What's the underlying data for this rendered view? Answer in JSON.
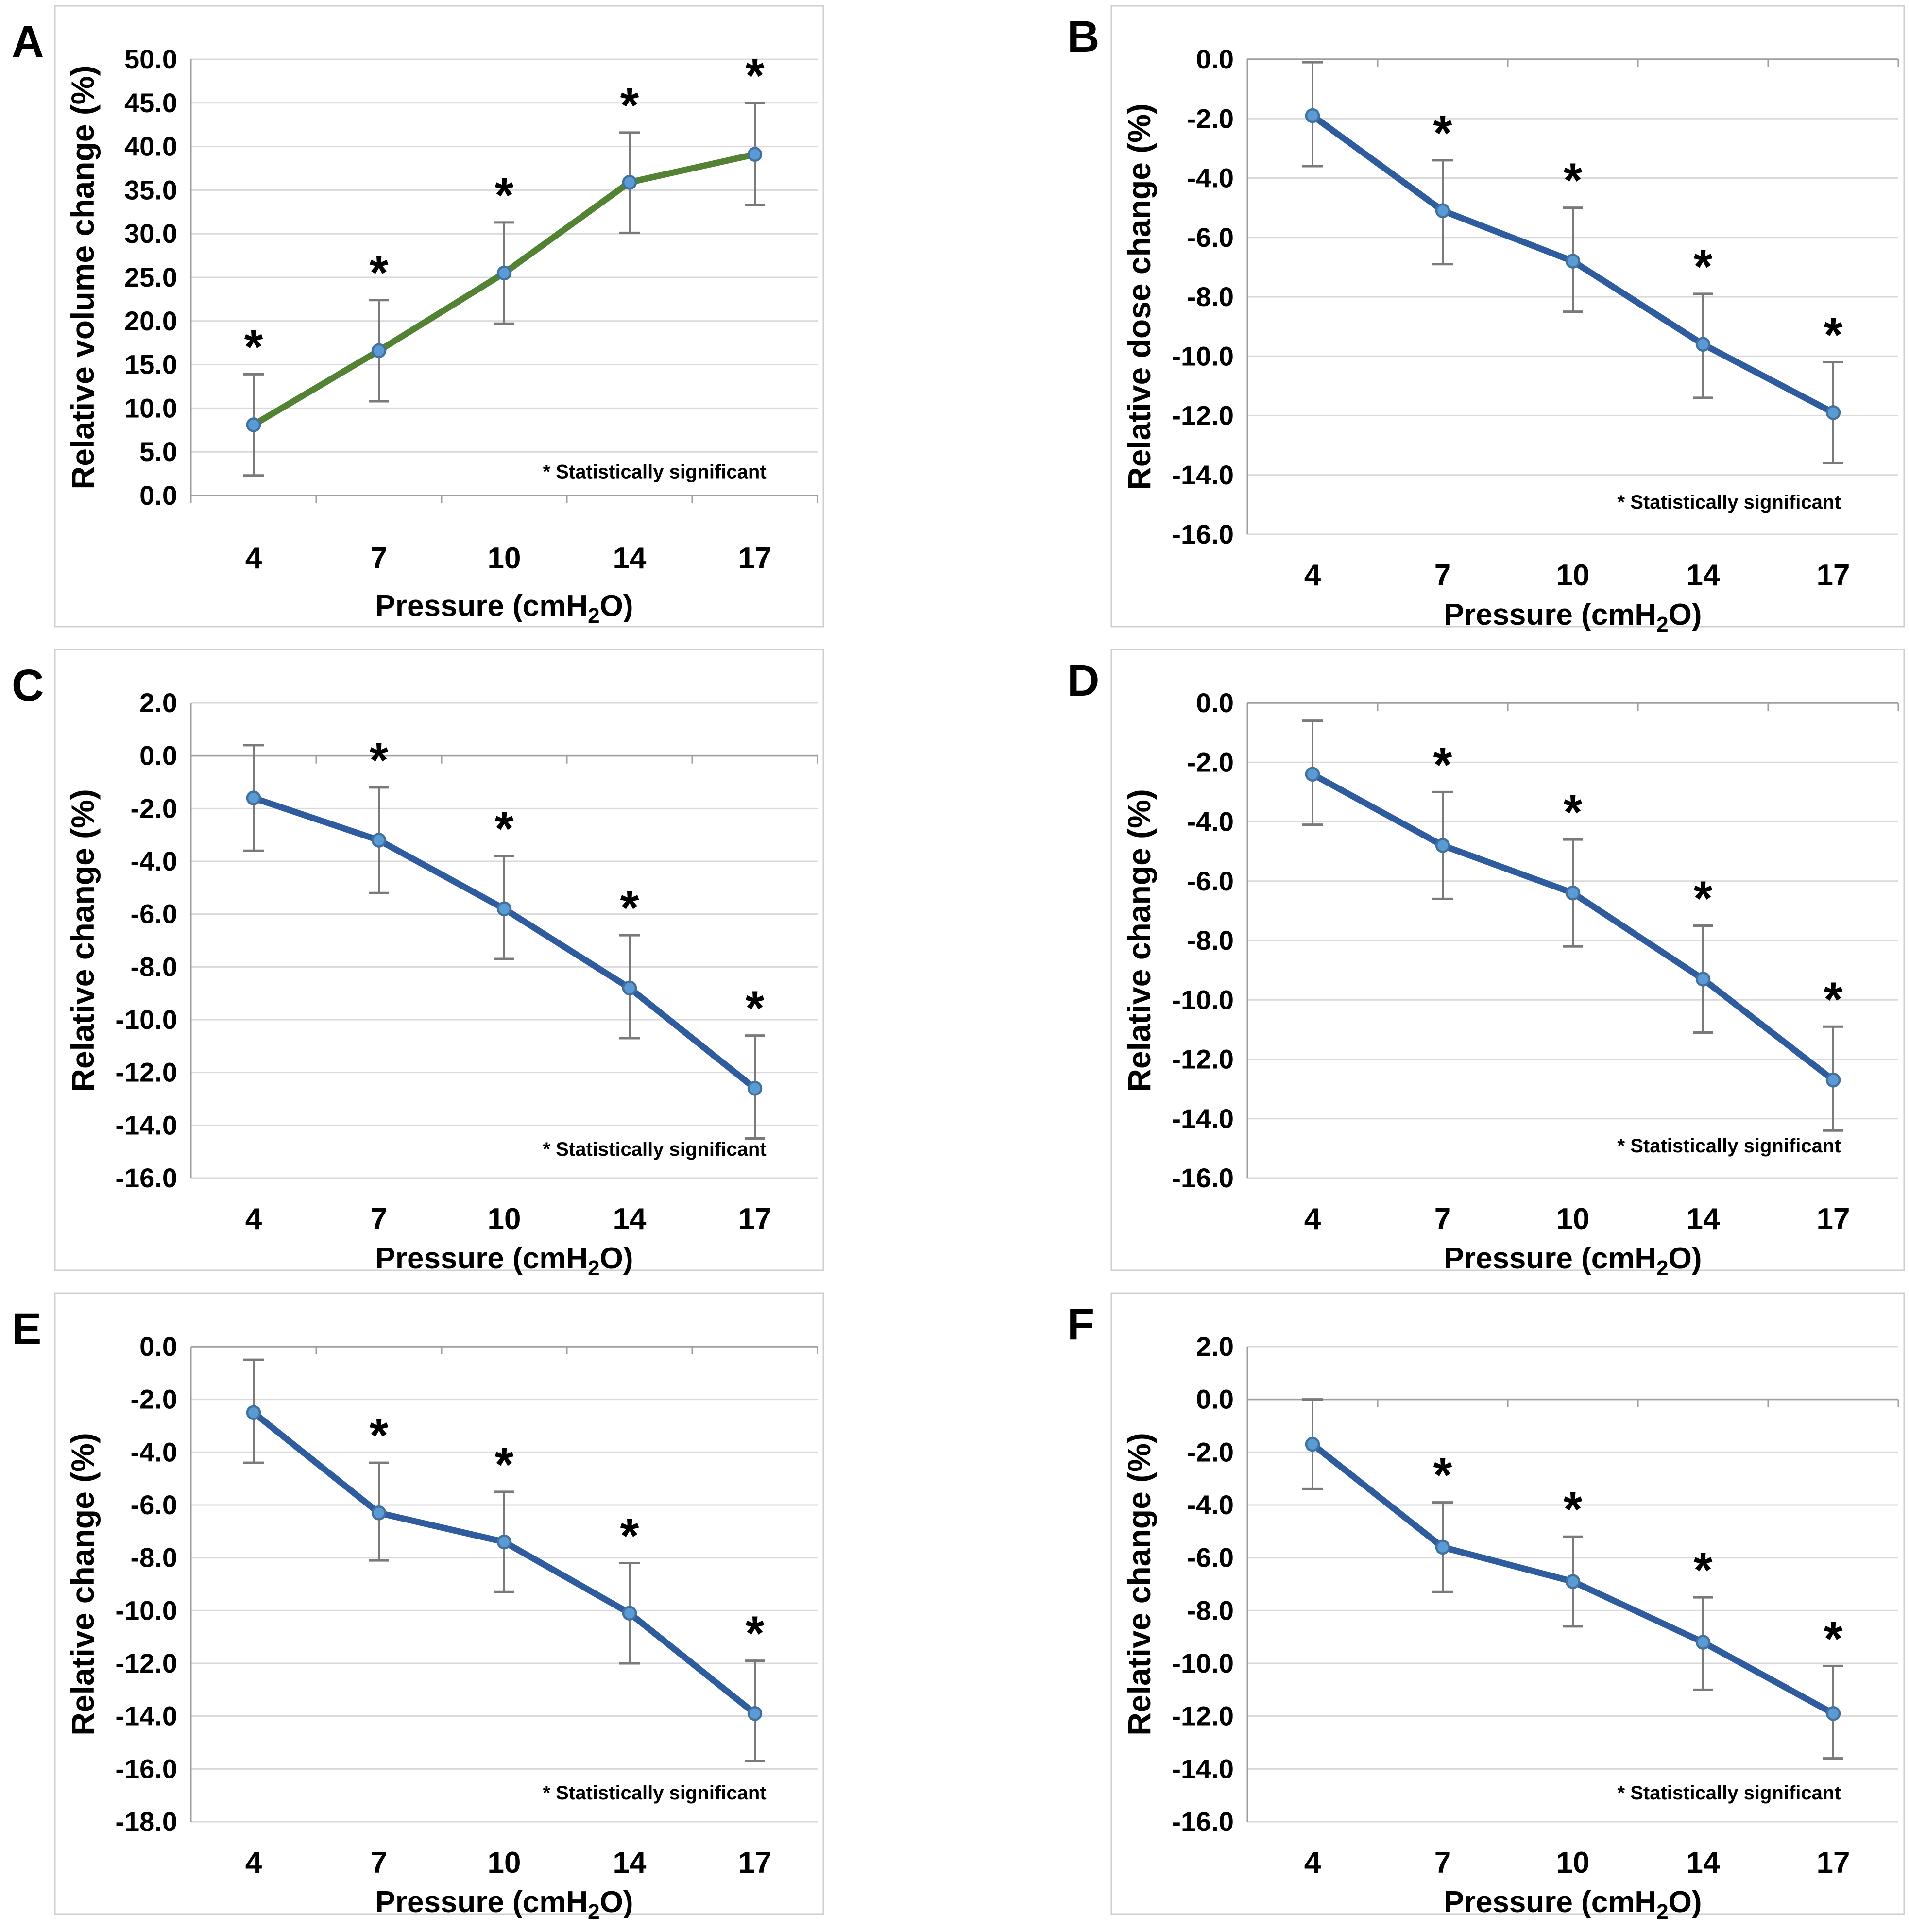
{
  "figure": {
    "description": "Six-panel figure of relative change versus CPAP pressure with standard-deviation error bars",
    "panels_order": [
      "A",
      "B",
      "C",
      "D",
      "E",
      "F"
    ]
  },
  "style": {
    "background": "#ffffff",
    "box_border": "#cfcfcf",
    "gridline": "#d9d9d9",
    "axis_line": "#9e9e9e",
    "error_bar": "#7a7a7a",
    "marker_fill": "#5b9bd5",
    "marker_stroke": "#41719c",
    "text_color": "#000000",
    "green_line": "#548235",
    "blue_line": "#2e5c9f"
  },
  "chart_data": [
    {
      "panel_label": "A",
      "type": "line",
      "ylabel": "Relative volume change (%)",
      "xlabel_pre": "Pressure (cmH",
      "xlabel_sub": "2",
      "xlabel_post": "O)",
      "categories": [
        "4",
        "7",
        "10",
        "14",
        "17"
      ],
      "values": [
        8.1,
        16.6,
        25.5,
        35.9,
        39.1
      ],
      "error_high": [
        13.9,
        22.4,
        31.3,
        41.6,
        45.0
      ],
      "error_low": [
        2.3,
        10.8,
        19.7,
        30.1,
        33.3
      ],
      "significant": [
        true,
        true,
        true,
        true,
        true
      ],
      "annotation": "* Statistically significant",
      "ylim": [
        0,
        50
      ],
      "ytick_step": 5,
      "line_color": "#548235",
      "grid": true,
      "legend": "none"
    },
    {
      "panel_label": "B",
      "type": "line",
      "ylabel": "Relative dose change (%)",
      "xlabel_pre": "Pressure (cmH",
      "xlabel_sub": "2",
      "xlabel_post": "O)",
      "categories": [
        "4",
        "7",
        "10",
        "14",
        "17"
      ],
      "values": [
        -1.9,
        -5.1,
        -6.8,
        -9.6,
        -11.9
      ],
      "error_high": [
        -0.1,
        -3.4,
        -5.0,
        -7.9,
        -10.2
      ],
      "error_low": [
        -3.6,
        -6.9,
        -8.5,
        -11.4,
        -13.6
      ],
      "significant": [
        false,
        true,
        true,
        true,
        true
      ],
      "annotation": "* Statistically significant",
      "ylim": [
        -16,
        0
      ],
      "ytick_step": 2,
      "line_color": "#2e5c9f",
      "grid": true,
      "legend": "none"
    },
    {
      "panel_label": "C",
      "type": "line",
      "ylabel": "Relative change (%)",
      "xlabel_pre": "Pressure (cmH",
      "xlabel_sub": "2",
      "xlabel_post": "O)",
      "categories": [
        "4",
        "7",
        "10",
        "14",
        "17"
      ],
      "values": [
        -1.6,
        -3.2,
        -5.8,
        -8.8,
        -12.6
      ],
      "error_high": [
        0.4,
        -1.2,
        -3.8,
        -6.8,
        -10.6
      ],
      "error_low": [
        -3.6,
        -5.2,
        -7.7,
        -10.7,
        -14.5
      ],
      "significant": [
        false,
        true,
        true,
        true,
        true
      ],
      "annotation": "* Statistically significant",
      "ylim": [
        -16,
        2
      ],
      "ytick_step": 2,
      "line_color": "#2e5c9f",
      "grid": true,
      "legend": "none"
    },
    {
      "panel_label": "D",
      "type": "line",
      "ylabel": "Relative change (%)",
      "xlabel_pre": "Pressure (cmH",
      "xlabel_sub": "2",
      "xlabel_post": "O)",
      "categories": [
        "4",
        "7",
        "10",
        "14",
        "17"
      ],
      "values": [
        -2.4,
        -4.8,
        -6.4,
        -9.3,
        -12.7
      ],
      "error_high": [
        -0.6,
        -3.0,
        -4.6,
        -7.5,
        -10.9
      ],
      "error_low": [
        -4.1,
        -6.6,
        -8.2,
        -11.1,
        -14.4
      ],
      "significant": [
        false,
        true,
        true,
        true,
        true
      ],
      "annotation": "* Statistically significant",
      "ylim": [
        -16,
        0
      ],
      "ytick_step": 2,
      "line_color": "#2e5c9f",
      "grid": true,
      "legend": "none"
    },
    {
      "panel_label": "E",
      "type": "line",
      "ylabel": "Relative change (%)",
      "xlabel_pre": "Pressure (cmH",
      "xlabel_sub": "2",
      "xlabel_post": "O)",
      "categories": [
        "4",
        "7",
        "10",
        "14",
        "17"
      ],
      "values": [
        -2.5,
        -6.3,
        -7.4,
        -10.1,
        -13.9
      ],
      "error_high": [
        -0.5,
        -4.4,
        -5.5,
        -8.2,
        -11.9
      ],
      "error_low": [
        -4.4,
        -8.1,
        -9.3,
        -12.0,
        -15.7
      ],
      "significant": [
        false,
        true,
        true,
        true,
        true
      ],
      "annotation": "* Statistically significant",
      "ylim": [
        -18,
        0
      ],
      "ytick_step": 2,
      "line_color": "#2e5c9f",
      "grid": true,
      "legend": "none"
    },
    {
      "panel_label": "F",
      "type": "line",
      "ylabel": "Relative change (%)",
      "xlabel_pre": "Pressure (cmH",
      "xlabel_sub": "2",
      "xlabel_post": "O)",
      "categories": [
        "4",
        "7",
        "10",
        "14",
        "17"
      ],
      "values": [
        -1.7,
        -5.6,
        -6.9,
        -9.2,
        -11.9
      ],
      "error_high": [
        0.0,
        -3.9,
        -5.2,
        -7.5,
        -10.1
      ],
      "error_low": [
        -3.4,
        -7.3,
        -8.6,
        -11.0,
        -13.6
      ],
      "significant": [
        false,
        true,
        true,
        true,
        true
      ],
      "annotation": "* Statistically significant",
      "ylim": [
        -16,
        2
      ],
      "ytick_step": 2,
      "line_color": "#2e5c9f",
      "grid": true,
      "legend": "none"
    }
  ]
}
